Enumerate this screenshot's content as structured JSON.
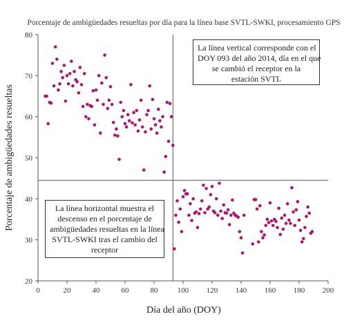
{
  "chart_data": {
    "type": "scatter",
    "title": "Porcentaje de ambigüedades resueltas por día para la línea base SVTL-SWKI, procesamiento GPS",
    "xlabel": "Día del año (DOY)",
    "ylabel": "Porcentaje de ambigüedades resueltas",
    "xlim": [
      0,
      200
    ],
    "ylim": [
      20,
      80
    ],
    "xticks": [
      "0",
      "20",
      "40",
      "60",
      "80",
      "100",
      "120",
      "140",
      "160",
      "180",
      "200"
    ],
    "yticks": [
      "20",
      "30",
      "40",
      "50",
      "60",
      "70",
      "80"
    ],
    "grid": false,
    "marker_color": "#b0126e",
    "reference_lines": {
      "vertical_x": 93,
      "horizontal_y": 44.5
    },
    "annotations": [
      {
        "id": "vertical-line-note",
        "lines": [
          "La línea vertical corresponde con el",
          "DOY 093 del año 2014, día en el que",
          "se cambió el receptor en la",
          "estación SVTL"
        ]
      },
      {
        "id": "horizontal-line-note",
        "lines": [
          "La línea horizontal muestra el",
          "descenso en el porcentaje de",
          "ambigüedades resueltas en la línea",
          "SVTL-SWKI tras el cambio del",
          "receptor"
        ]
      }
    ],
    "series": [
      {
        "points": [
          [
            5,
            65
          ],
          [
            6,
            65
          ],
          [
            7,
            58.3
          ],
          [
            8,
            63.5
          ],
          [
            9,
            63.3
          ],
          [
            10,
            73
          ],
          [
            11,
            67.5
          ],
          [
            12,
            77
          ],
          [
            13,
            74
          ],
          [
            14,
            66.5
          ],
          [
            15,
            68
          ],
          [
            16,
            71
          ],
          [
            17,
            69.5
          ],
          [
            18,
            72.5
          ],
          [
            19,
            63.8
          ],
          [
            20,
            70
          ],
          [
            21,
            68
          ],
          [
            22,
            70.5
          ],
          [
            23,
            73.5
          ],
          [
            24,
            67.5
          ],
          [
            25,
            71
          ],
          [
            26,
            69
          ],
          [
            27,
            68.5
          ],
          [
            28,
            65.8
          ],
          [
            29,
            72
          ],
          [
            30,
            67.8
          ],
          [
            31,
            62.5
          ],
          [
            32,
            70.5
          ],
          [
            33,
            60
          ],
          [
            34,
            63
          ],
          [
            35,
            59.5
          ],
          [
            36,
            62.7
          ],
          [
            37,
            62.5
          ],
          [
            38,
            66.3
          ],
          [
            39,
            58
          ],
          [
            40,
            66.5
          ],
          [
            41,
            64
          ],
          [
            42,
            70
          ],
          [
            43,
            56
          ],
          [
            44,
            68.2
          ],
          [
            45,
            63
          ],
          [
            46,
            75
          ],
          [
            47,
            69.5
          ],
          [
            48,
            62
          ],
          [
            49,
            64
          ],
          [
            50,
            67.3
          ],
          [
            51,
            63
          ],
          [
            52,
            58.6
          ],
          [
            53,
            55.5
          ],
          [
            54,
            57
          ],
          [
            55,
            55.3
          ],
          [
            56,
            49.6
          ],
          [
            57,
            63.5
          ],
          [
            58,
            60
          ],
          [
            59,
            61.5
          ],
          [
            60,
            58.3
          ],
          [
            61,
            57.5
          ],
          [
            62,
            60.5
          ],
          [
            63,
            59
          ],
          [
            64,
            67.8
          ],
          [
            65,
            58.5
          ],
          [
            66,
            61
          ],
          [
            67,
            58
          ],
          [
            68,
            61.5
          ],
          [
            69,
            56.5
          ],
          [
            70,
            59.2
          ],
          [
            71,
            64
          ],
          [
            72,
            57.5
          ],
          [
            73,
            47
          ],
          [
            74,
            56.3
          ],
          [
            75,
            60.5
          ],
          [
            76,
            61.5
          ],
          [
            77,
            67.5
          ],
          [
            78,
            57
          ],
          [
            79,
            64.2
          ],
          [
            80,
            59.5
          ],
          [
            81,
            58
          ],
          [
            82,
            56
          ],
          [
            83,
            61.8
          ],
          [
            84,
            59
          ],
          [
            85,
            57.5
          ],
          [
            86,
            60
          ],
          [
            87,
            46.5
          ],
          [
            88,
            50.3
          ],
          [
            89,
            63.5
          ],
          [
            90,
            54
          ],
          [
            91,
            63.2
          ],
          [
            92,
            60
          ],
          [
            93,
            53
          ],
          [
            94,
            27.8
          ],
          [
            95,
            36
          ],
          [
            96,
            39.5
          ],
          [
            97,
            34.3
          ],
          [
            98,
            37.5
          ],
          [
            99,
            32
          ],
          [
            100,
            40.5
          ],
          [
            101,
            42
          ],
          [
            102,
            41.2
          ],
          [
            103,
            41.2
          ],
          [
            104,
            36
          ],
          [
            105,
            38.8
          ],
          [
            106,
            34.7
          ],
          [
            107,
            40
          ],
          [
            108,
            36.5
          ],
          [
            109,
            36.8
          ],
          [
            110,
            33
          ],
          [
            111,
            36.4
          ],
          [
            112,
            37.5
          ],
          [
            113,
            39.5
          ],
          [
            114,
            43.3
          ],
          [
            115,
            36.6
          ],
          [
            116,
            42.5
          ],
          [
            117,
            37.5
          ],
          [
            118,
            38
          ],
          [
            119,
            41
          ],
          [
            120,
            43
          ],
          [
            121,
            37
          ],
          [
            122,
            36.6
          ],
          [
            123,
            40
          ],
          [
            124,
            36
          ],
          [
            125,
            43.8
          ],
          [
            126,
            37
          ],
          [
            127,
            35.2
          ],
          [
            128,
            38.5
          ],
          [
            129,
            36.6
          ],
          [
            130,
            36.5
          ],
          [
            131,
            37.3
          ],
          [
            132,
            33.7
          ],
          [
            133,
            36
          ],
          [
            134,
            39.7
          ],
          [
            135,
            36.5
          ],
          [
            136,
            36
          ],
          [
            137,
            35.8
          ],
          [
            138,
            35.5
          ],
          [
            139,
            32
          ],
          [
            140,
            30.5
          ],
          [
            141,
            26.8
          ],
          [
            142,
            36
          ],
          [
            148,
            29
          ],
          [
            149,
            39.8
          ],
          [
            150,
            39.8
          ],
          [
            151,
            37.5
          ],
          [
            152,
            29.5
          ],
          [
            153,
            38.3
          ],
          [
            154,
            32
          ],
          [
            155,
            30.5
          ],
          [
            156,
            31.2
          ],
          [
            157,
            33.5
          ],
          [
            158,
            35
          ],
          [
            159,
            34.2
          ],
          [
            160,
            39
          ],
          [
            161,
            34.6
          ],
          [
            162,
            33.5
          ],
          [
            163,
            35
          ],
          [
            164,
            34.5
          ],
          [
            165,
            33
          ],
          [
            166,
            37.7
          ],
          [
            167,
            31.3
          ],
          [
            168,
            35.3
          ],
          [
            169,
            32.6
          ],
          [
            170,
            36
          ],
          [
            171,
            34
          ],
          [
            172,
            38.8
          ],
          [
            173,
            34.8
          ],
          [
            174,
            34
          ],
          [
            175,
            42.7
          ],
          [
            176,
            36.8
          ],
          [
            177,
            33.5
          ],
          [
            178,
            37.3
          ],
          [
            179,
            39.3
          ],
          [
            180,
            34.8
          ],
          [
            181,
            32.3
          ],
          [
            182,
            29.5
          ],
          [
            183,
            30.3
          ],
          [
            184,
            33
          ],
          [
            185,
            35.7
          ],
          [
            186,
            38
          ],
          [
            187,
            36.5
          ],
          [
            188,
            31.6
          ],
          [
            189,
            32
          ]
        ]
      }
    ]
  }
}
